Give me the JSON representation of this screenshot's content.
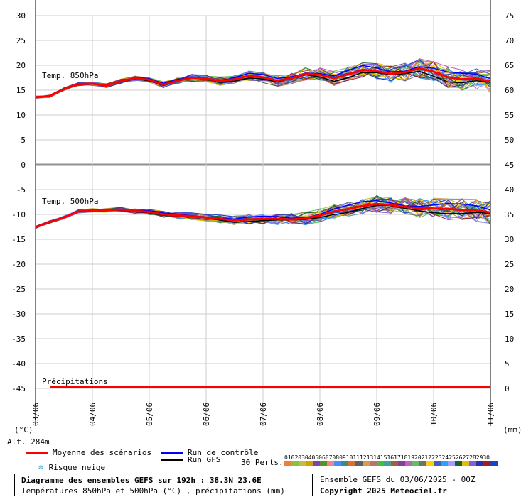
{
  "chart_data": {
    "type": "line",
    "left_axis_unit": "(°C)",
    "right_axis_unit": "(mm)",
    "left_ticks": [
      30,
      25,
      20,
      15,
      10,
      5,
      0,
      -5,
      -10,
      -15,
      -20,
      -25,
      -30,
      -35,
      -40,
      -45
    ],
    "right_ticks": [
      75,
      70,
      65,
      60,
      55,
      50,
      45,
      40,
      35,
      30,
      25,
      20,
      15,
      10,
      5,
      0
    ],
    "x_ticks": [
      "03/06",
      "04/06",
      "05/06",
      "06/06",
      "07/06",
      "08/06",
      "09/06",
      "10/06",
      "11/06"
    ],
    "panels": {
      "t850_label": "Temp. 850hPa",
      "t500_label": "Temp. 500hPa",
      "precip_label": "Précipitations"
    },
    "altitude": "Alt. 284m",
    "series": [
      {
        "name": "Moyenne des scénarios",
        "color": "#ff0000",
        "t850": [
          13.6,
          13.8,
          15.2,
          16.2,
          16.3,
          15.9,
          16.8,
          17.4,
          17.1,
          16.1,
          16.9,
          17.5,
          17.3,
          16.8,
          17.2,
          17.9,
          17.6,
          16.9,
          17.4,
          18.3,
          18.1,
          17.4,
          18.2,
          19.1,
          18.8,
          18.3,
          18.6,
          19.4,
          18.7,
          17.6,
          17.2,
          17.3,
          16.8
        ],
        "t500": [
          -12.6,
          -11.5,
          -10.6,
          -9.4,
          -9.2,
          -9.2,
          -9.0,
          -9.3,
          -9.5,
          -10.0,
          -10.2,
          -10.4,
          -10.6,
          -10.9,
          -11.2,
          -11.0,
          -10.9,
          -10.9,
          -11.0,
          -10.8,
          -10.2,
          -9.4,
          -8.9,
          -8.3,
          -7.9,
          -8.1,
          -8.5,
          -8.7,
          -8.8,
          -8.9,
          -9.1,
          -9.2,
          -9.6
        ],
        "precip": [
          0,
          0,
          0,
          0,
          0,
          0,
          0,
          0,
          0,
          0,
          0,
          0,
          0,
          0,
          0,
          0,
          0,
          0,
          0,
          0,
          0,
          0,
          0,
          0,
          0,
          0,
          0,
          0,
          0,
          0,
          0,
          0
        ]
      },
      {
        "name": "Run de contrôle",
        "color": "#0000ff"
      },
      {
        "name": "Run GFS",
        "color": "#000000"
      }
    ],
    "perturbations_label": "30 Perts.",
    "perturbation_ids": [
      "01",
      "02",
      "03",
      "04",
      "05",
      "06",
      "07",
      "08",
      "09",
      "10",
      "11",
      "12",
      "13",
      "14",
      "15",
      "16",
      "17",
      "18",
      "19",
      "20",
      "21",
      "22",
      "23",
      "24",
      "25",
      "26",
      "27",
      "28",
      "29",
      "30"
    ],
    "perturbation_colors": [
      "#e8823a",
      "#8fbf40",
      "#c0c040",
      "#d4a000",
      "#7a46b0",
      "#5a8f2a",
      "#ff8080",
      "#4090ff",
      "#3a8a8a",
      "#e07020",
      "#606060",
      "#d0a050",
      "#c07070",
      "#40c040",
      "#40a0a0",
      "#a06040",
      "#8040a0",
      "#c060c0",
      "#60c060",
      "#707070",
      "#ffd000",
      "#4060c0",
      "#30a0ff",
      "#a0a0ff",
      "#1a6030",
      "#e0c000",
      "#8060e0",
      "#3030a0",
      "#a02020",
      "#2040c0"
    ]
  },
  "legend": {
    "mean": "Moyenne des scénarios",
    "control": "Run de contrôle",
    "gfs": "Run GFS",
    "snow": "Risque neige"
  },
  "info": {
    "title": "Diagramme des ensembles GEFS sur 192h : 38.3N 23.6E",
    "subtitle": "Températures 850hPa et 500hPa (°C) , précipitations (mm)",
    "run": "Ensemble GEFS du 03/06/2025 - 00Z",
    "copyright": "Copyright 2025 Meteociel.fr"
  }
}
